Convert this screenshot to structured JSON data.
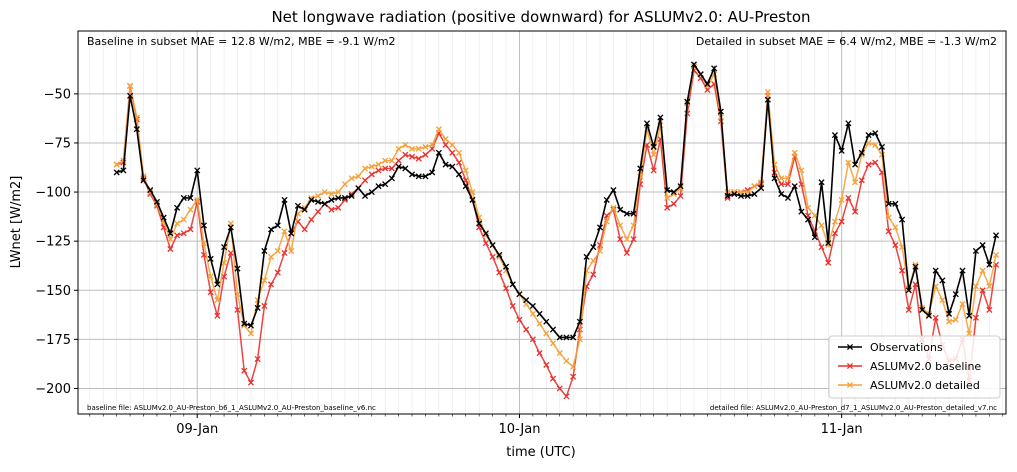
{
  "chart_data": {
    "type": "line",
    "title": "Net longwave radiation (positive downward) for ASLUMv2.0: AU-Preston",
    "xlabel": "time (UTC)",
    "ylabel": "LWnet [W/m2]",
    "xlim": [
      -0.37,
      2.51
    ],
    "ylim": [
      -213,
      -18
    ],
    "grid": true,
    "legend_position": "lower-right",
    "x_ticks": [
      {
        "value": 0,
        "label": "09-Jan"
      },
      {
        "value": 1,
        "label": "10-Jan"
      },
      {
        "value": 2,
        "label": "11-Jan"
      }
    ],
    "y_ticks": [
      -200,
      -175,
      -150,
      -125,
      -100,
      -75,
      -50
    ],
    "x_start": -0.25,
    "x_step": 0.0208333,
    "annotations": {
      "top_left": "Baseline in subset MAE = 12.8 W/m2, MBE = -9.1 W/m2",
      "top_right": "Detailed in subset MAE = 6.4 W/m2, MBE = -1.3 W/m2",
      "bottom_left": "baseline file: ASLUMv2.0_AU-Preston_b6_1_ASLUMv2.0_AU-Preston_baseline_v6.nc",
      "bottom_right": "detailed file: ASLUMv2.0_AU-Preston_d7_1_ASLUMv2.0_AU-Preston_detailed_v7.nc"
    },
    "series": [
      {
        "name": "Observations",
        "color": "#000000",
        "values": [
          -90,
          -89,
          -51,
          -68,
          -94,
          -99,
          -105,
          -113,
          -121,
          -108,
          -103,
          -103,
          -89,
          -117,
          -134,
          -147,
          -128,
          -118,
          -139,
          -167,
          -168,
          -159,
          -130,
          -119,
          -117,
          -104,
          -121,
          -107,
          -109,
          -104,
          -105,
          -106,
          -104,
          -103,
          -103,
          -102,
          -98,
          -102,
          -100,
          -97,
          -96,
          -93,
          -87,
          -88,
          -91,
          -92,
          -92,
          -90,
          -80,
          -86,
          -87,
          -91,
          -97,
          -104,
          -116,
          -121,
          -127,
          -132,
          -138,
          -147,
          -152,
          -155,
          -158,
          -162,
          -166,
          -170,
          -174,
          -174,
          -174,
          -166,
          -133,
          -128,
          -118,
          -104,
          -99,
          -109,
          -111,
          -111,
          -88,
          -65,
          -77,
          -62,
          -99,
          -100,
          -97,
          -54,
          -35,
          -40,
          -45,
          -37,
          -59,
          -102,
          -101,
          -102,
          -102,
          -101,
          -98,
          -53,
          -93,
          -101,
          -103,
          -97,
          -110,
          -114,
          -123,
          -95,
          -126,
          -71,
          -79,
          -65,
          -86,
          -80,
          -71,
          -70,
          -77,
          -106,
          -106,
          -114,
          -150,
          -138,
          -160,
          -163,
          -140,
          -145,
          -162,
          -152,
          -140,
          -163,
          -130,
          -127,
          -137,
          -122
        ],
        "comment_note": ""
      },
      {
        "name": "ASLUMv2.0 baseline",
        "color": "#e8312f",
        "values": [
          -86,
          -85,
          -46,
          -63,
          -93,
          -101,
          -107,
          -118,
          -129,
          -122,
          -121,
          -119,
          -105,
          -132,
          -151,
          -163,
          -143,
          -131,
          -160,
          -191,
          -197,
          -185,
          -158,
          -147,
          -141,
          -131,
          -121,
          -115,
          -119,
          -114,
          -110,
          -106,
          -109,
          -108,
          -104,
          -101,
          -98,
          -94,
          -91,
          -89,
          -88,
          -88,
          -84,
          -81,
          -82,
          -83,
          -81,
          -78,
          -70,
          -76,
          -80,
          -85,
          -94,
          -104,
          -118,
          -126,
          -133,
          -141,
          -149,
          -158,
          -165,
          -170,
          -175,
          -182,
          -188,
          -195,
          -200,
          -204,
          -194,
          -170,
          -148,
          -142,
          -127,
          -112,
          -109,
          -124,
          -131,
          -124,
          -96,
          -76,
          -89,
          -73,
          -108,
          -106,
          -102,
          -60,
          -38,
          -42,
          -48,
          -45,
          -64,
          -103,
          -100,
          -100,
          -99,
          -97,
          -96,
          -51,
          -90,
          -96,
          -96,
          -82,
          -96,
          -112,
          -120,
          -128,
          -136,
          -121,
          -115,
          -103,
          -110,
          -94,
          -86,
          -85,
          -90,
          -120,
          -127,
          -140,
          -160,
          -147,
          -175,
          -185,
          -164,
          -178,
          -186,
          -185,
          -175,
          -196,
          -164,
          -150,
          -160,
          -137
        ],
        "comment_note": ""
      },
      {
        "name": "ASLUMv2.0 detailed",
        "color": "#f5a13a",
        "values": [
          -86,
          -84,
          -46,
          -62,
          -92,
          -100,
          -106,
          -115,
          -124,
          -116,
          -114,
          -109,
          -104,
          -126,
          -143,
          -155,
          -136,
          -116,
          -152,
          -168,
          -172,
          -155,
          -145,
          -133,
          -130,
          -120,
          -130,
          -111,
          -108,
          -103,
          -102,
          -100,
          -101,
          -100,
          -96,
          -93,
          -92,
          -88,
          -87,
          -86,
          -84,
          -84,
          -78,
          -76,
          -78,
          -78,
          -77,
          -76,
          -68,
          -73,
          -76,
          -80,
          -89,
          -100,
          -113,
          -122,
          -127,
          -133,
          -140,
          -147,
          -152,
          -157,
          -162,
          -167,
          -172,
          -177,
          -182,
          -186,
          -189,
          -175,
          -140,
          -135,
          -130,
          -115,
          -108,
          -117,
          -124,
          -117,
          -92,
          -68,
          -81,
          -66,
          -103,
          -101,
          -98,
          -55,
          -36,
          -40,
          -46,
          -40,
          -62,
          -100,
          -100,
          -100,
          -100,
          -97,
          -95,
          -49,
          -86,
          -93,
          -93,
          -80,
          -89,
          -108,
          -112,
          -117,
          -127,
          -115,
          -104,
          -85,
          -95,
          -81,
          -75,
          -76,
          -81,
          -113,
          -118,
          -128,
          -149,
          -137,
          -159,
          -162,
          -148,
          -155,
          -166,
          -165,
          -157,
          -172,
          -148,
          -140,
          -148,
          -132
        ],
        "comment_note": ""
      }
    ]
  }
}
